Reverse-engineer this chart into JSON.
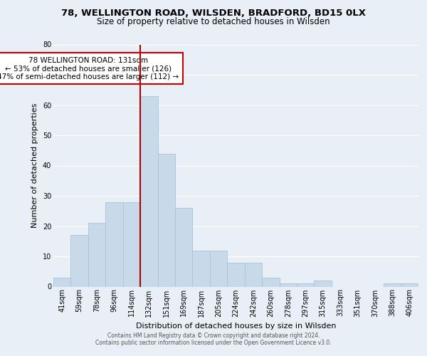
{
  "title1": "78, WELLINGTON ROAD, WILSDEN, BRADFORD, BD15 0LX",
  "title2": "Size of property relative to detached houses in Wilsden",
  "xlabel": "Distribution of detached houses by size in Wilsden",
  "ylabel": "Number of detached properties",
  "categories": [
    "41sqm",
    "59sqm",
    "78sqm",
    "96sqm",
    "114sqm",
    "132sqm",
    "151sqm",
    "169sqm",
    "187sqm",
    "205sqm",
    "224sqm",
    "242sqm",
    "260sqm",
    "278sqm",
    "297sqm",
    "315sqm",
    "333sqm",
    "351sqm",
    "370sqm",
    "388sqm",
    "406sqm"
  ],
  "values": [
    3,
    17,
    21,
    28,
    28,
    63,
    44,
    26,
    12,
    12,
    8,
    8,
    3,
    1,
    1,
    2,
    0,
    0,
    0,
    1,
    1
  ],
  "bar_color": "#c8d9ea",
  "bar_edge_color": "#a8c4d8",
  "vline_color": "#aa0000",
  "annotation_text": "78 WELLINGTON ROAD: 131sqm\n← 53% of detached houses are smaller (126)\n47% of semi-detached houses are larger (112) →",
  "annotation_box_color": "white",
  "annotation_box_edge": "#cc0000",
  "ylim": [
    0,
    80
  ],
  "yticks": [
    0,
    10,
    20,
    30,
    40,
    50,
    60,
    70,
    80
  ],
  "footer1": "Contains HM Land Registry data © Crown copyright and database right 2024.",
  "footer2": "Contains public sector information licensed under the Open Government Licence v3.0.",
  "bg_color": "#e8eff6",
  "plot_bg_color": "#e8eff6",
  "grid_color": "#ffffff",
  "title1_fontsize": 9.5,
  "title2_fontsize": 8.5,
  "ylabel_fontsize": 8.0,
  "xlabel_fontsize": 8.0,
  "tick_fontsize": 7.0,
  "footer_fontsize": 5.5,
  "ann_fontsize": 7.5
}
